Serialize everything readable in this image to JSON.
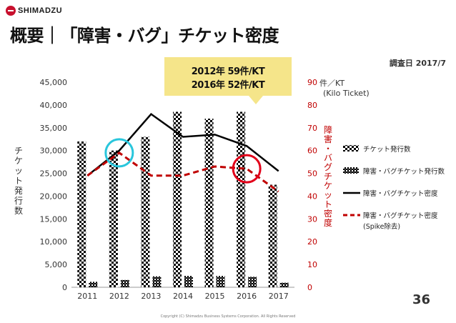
{
  "header": {
    "logo_text": "SHIMADZU",
    "title": "概要｜「障害・バグ」チケット密度",
    "date": "調査日 2017/7"
  },
  "callout": {
    "line1": "2012年 59件/KT",
    "line2": "2016年 52件/KT"
  },
  "footer": {
    "page_number": "36",
    "copyright": "Copyright (C) Shimadzu Business Systems Corporation. All Rights Reserved"
  },
  "colors": {
    "bar_checker": "#000000",
    "density_line": "#000000",
    "spike_line": "#c00000",
    "right_axis": "#c00000",
    "cyan_circle": "#29c6dc",
    "red_circle": "#e2001a",
    "callout_bg": "#f5e58a"
  },
  "chart_data": {
    "type": "bar",
    "categories": [
      "2011",
      "2012",
      "2013",
      "2014",
      "2015",
      "2016",
      "2017"
    ],
    "ylabel": "チケット発行数",
    "ylim": [
      0,
      45000
    ],
    "yticks": [
      "0",
      "5,000",
      "10,000",
      "15,000",
      "20,000",
      "25,000",
      "30,000",
      "35,000",
      "40,000",
      "45,000"
    ],
    "y2label": "障害・バグチケット密度",
    "y2unit": "件／KT",
    "y2unit_note": "(Kilo Ticket)",
    "y2lim": [
      0,
      90
    ],
    "y2ticks": [
      "0",
      "10",
      "20",
      "30",
      "40",
      "50",
      "60",
      "70",
      "80",
      "90"
    ],
    "series": [
      {
        "name": "チケット発行数",
        "kind": "bar",
        "axis": "left",
        "values": [
          32000,
          30000,
          33000,
          38500,
          37000,
          38500,
          22500
        ]
      },
      {
        "name": "障害・バグチケット発行数",
        "kind": "bar",
        "axis": "left",
        "values": [
          1200,
          1600,
          2400,
          2500,
          2500,
          2300,
          1000
        ]
      },
      {
        "name": "障害・バグチケット密度",
        "kind": "line",
        "axis": "right",
        "values": [
          49,
          60,
          76,
          66,
          67,
          62,
          51
        ]
      },
      {
        "name": "障害・バグチケット密度",
        "name_note": "(Spike除去)",
        "kind": "dashed-line",
        "axis": "right",
        "values": [
          49,
          59,
          49,
          49,
          53,
          52,
          42
        ]
      }
    ],
    "highlights": [
      {
        "category": "2012",
        "color": "cyan"
      },
      {
        "category": "2016",
        "color": "red"
      }
    ],
    "legend_position": "right"
  }
}
